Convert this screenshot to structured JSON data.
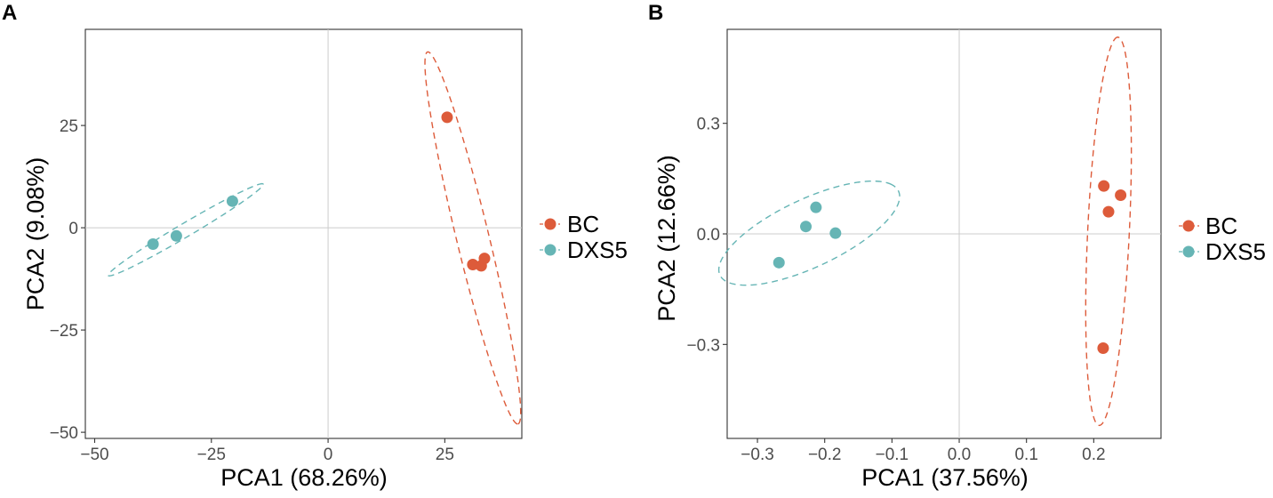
{
  "chart_data": [
    {
      "panel": "A",
      "type": "scatter",
      "xlabel": "PCA1 (68.26%)",
      "ylabel": "PCA2 (9.08%)",
      "xlim": [
        -52,
        41.5
      ],
      "ylim": [
        -51.5,
        48.5
      ],
      "xticks": [
        -50,
        -25,
        0,
        25
      ],
      "xtick_labels": [
        "−50",
        "−25",
        "0",
        "25"
      ],
      "yticks": [
        -50,
        -25,
        0,
        25
      ],
      "ytick_labels": [
        "−50",
        "−25",
        "0",
        "25"
      ],
      "grid": "reference lines at x=0 and y=0",
      "legend_position": "right",
      "series": [
        {
          "name": "BC",
          "color": "#dd5b3a",
          "points": [
            [
              25.5,
              27
            ],
            [
              31,
              -9
            ],
            [
              32.8,
              -9.3
            ],
            [
              33.5,
              -7.5
            ]
          ],
          "ellipse": {
            "cx": 31,
            "cy": -2.5,
            "rx": 46.5,
            "ry": 3.5,
            "angle_deg": -78
          }
        },
        {
          "name": "DXS5",
          "color": "#66b5b5",
          "points": [
            [
              -37.5,
              -4
            ],
            [
              -32.5,
              -2
            ],
            [
              -20.5,
              6.5
            ]
          ],
          "ellipse": {
            "cx": -30.5,
            "cy": -0.5,
            "rx": 20,
            "ry": 1.6,
            "angle_deg": 34
          }
        }
      ]
    },
    {
      "panel": "B",
      "type": "scatter",
      "xlabel": "PCA1 (37.56%)",
      "ylabel": "PCA2 (12.66%)",
      "xlim": [
        -0.345,
        0.3
      ],
      "ylim": [
        -0.555,
        0.555
      ],
      "xticks": [
        -0.3,
        -0.2,
        -0.1,
        0.0,
        0.1,
        0.2
      ],
      "xtick_labels": [
        "−0.3",
        "−0.2",
        "−0.1",
        "0.0",
        "0.1",
        "0.2"
      ],
      "yticks": [
        -0.3,
        0.0,
        0.3
      ],
      "ytick_labels": [
        "−0.3",
        "0.0",
        "0.3"
      ],
      "grid": "reference lines at x=0 and y=0",
      "legend_position": "right",
      "series": [
        {
          "name": "BC",
          "color": "#dd5b3a",
          "points": [
            [
              0.215,
              0.13
            ],
            [
              0.24,
              0.105
            ],
            [
              0.222,
              0.06
            ],
            [
              0.214,
              -0.31
            ]
          ],
          "ellipse": {
            "cx": 0.222,
            "cy": 0.007,
            "rx": 0.527,
            "ry": 0.031,
            "angle_deg": 88.5
          }
        },
        {
          "name": "DXS5",
          "color": "#66b5b5",
          "points": [
            [
              -0.268,
              -0.078
            ],
            [
              -0.228,
              0.02
            ],
            [
              -0.213,
              0.072
            ],
            [
              -0.184,
              0.002
            ]
          ],
          "ellipse": {
            "cx": -0.223,
            "cy": 0.002,
            "rx": 0.18,
            "ry": 0.075,
            "angle_deg": 47
          }
        }
      ]
    }
  ]
}
